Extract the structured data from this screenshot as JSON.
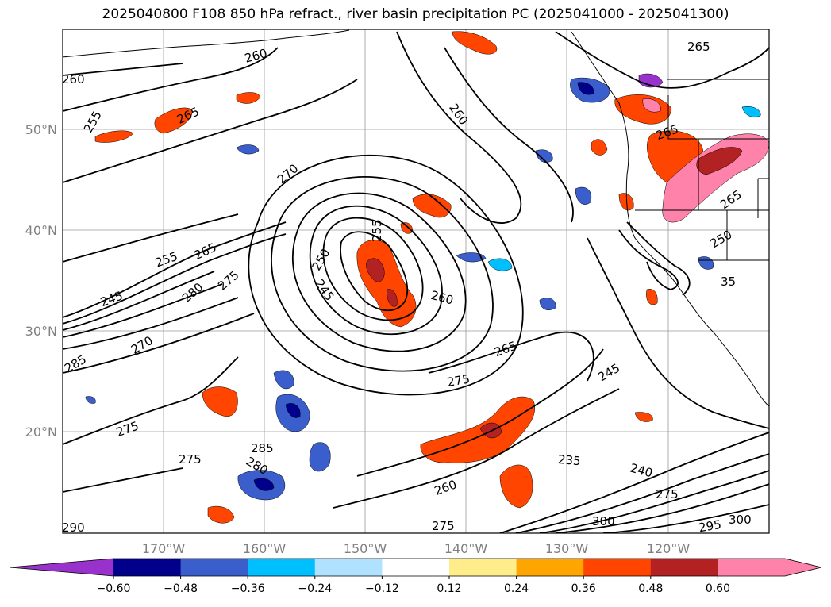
{
  "title": "2025040800 F108 850 hPa refract., river basin precipitation PC (2025041000 - 2025041300)",
  "map": {
    "lat_labels": [
      "50°N",
      "40°N",
      "30°N",
      "20°N"
    ],
    "lon_labels": [
      "170°W",
      "160°W",
      "150°W",
      "140°W",
      "130°W",
      "120°W"
    ],
    "contour_labels": [
      "260",
      "255",
      "265",
      "260",
      "260",
      "265",
      "270",
      "255",
      "250",
      "245",
      "260",
      "255",
      "265",
      "245",
      "280",
      "275",
      "270",
      "285",
      "265",
      "275",
      "245",
      "235",
      "240",
      "275",
      "260",
      "275",
      "280",
      "285",
      "290",
      "275",
      "300",
      "295",
      "300",
      "250",
      "265",
      "35",
      "265",
      "275"
    ],
    "colors": {
      "land_outline": "#000000",
      "grid": "#999999",
      "contour": "#000000"
    }
  },
  "colorbar": {
    "ticks": [
      "−0.60",
      "−0.48",
      "−0.36",
      "−0.24",
      "−0.12",
      "0.12",
      "0.24",
      "0.36",
      "0.48",
      "0.60"
    ],
    "colors": [
      "#9932cc",
      "#00008b",
      "#3a5fcd",
      "#00bfff",
      "#b0e2ff",
      "#ffffff",
      "#ffec8b",
      "#ffa500",
      "#ff4500",
      "#b22222",
      "#ff82ab",
      "#ff82ab"
    ]
  }
}
